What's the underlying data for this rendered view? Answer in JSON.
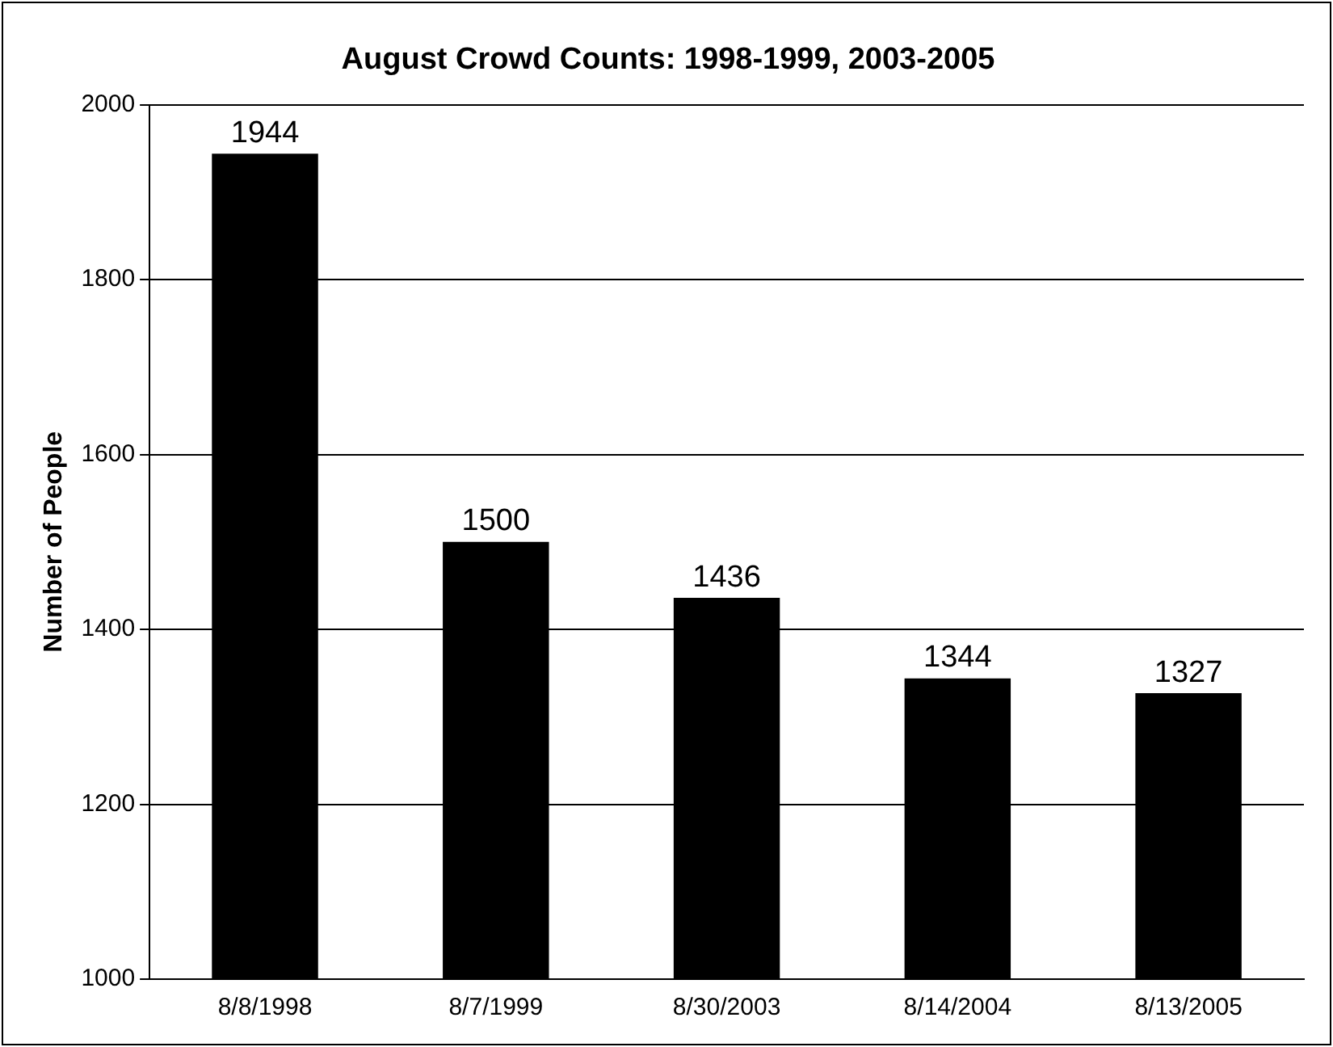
{
  "chart_data": {
    "type": "bar",
    "title": "August Crowd Counts: 1998-1999, 2003-2005",
    "ylabel": "Number of People",
    "categories": [
      "8/8/1998",
      "8/7/1999",
      "8/30/2003",
      "8/14/2004",
      "8/13/2005"
    ],
    "values": [
      1944,
      1500,
      1436,
      1344,
      1327
    ],
    "color": "#000000",
    "ylim": [
      1000,
      2000
    ],
    "yticks": [
      1000,
      1200,
      1400,
      1600,
      1800,
      2000
    ],
    "grid": "y",
    "data_labels": true,
    "legend": false
  }
}
